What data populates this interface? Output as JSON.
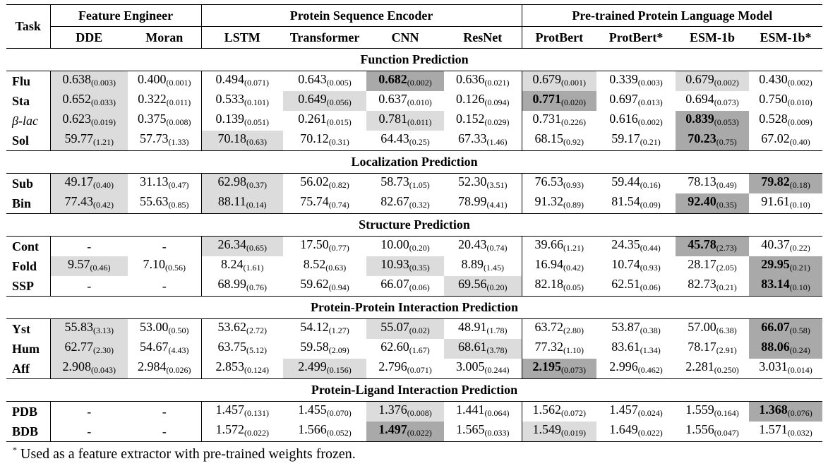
{
  "headers": {
    "task": "Task",
    "groups": [
      {
        "label": "Feature Engineer",
        "span": 2
      },
      {
        "label": "Protein Sequence Encoder",
        "span": 4
      },
      {
        "label": "Pre-trained Protein Language Model",
        "span": 4
      }
    ],
    "methods": [
      "DDE",
      "Moran",
      "LSTM",
      "Transformer",
      "CNN",
      "ResNet",
      "ProtBert",
      "ProtBert*",
      "ESM-1b",
      "ESM-1b*"
    ]
  },
  "sections": [
    {
      "title": "Function Prediction",
      "rows": [
        {
          "task": "Flu",
          "cells": [
            {
              "v": "0.638",
              "s": "(0.003)",
              "h": "light"
            },
            {
              "v": "0.400",
              "s": "(0.001)"
            },
            {
              "v": "0.494",
              "s": "(0.071)"
            },
            {
              "v": "0.643",
              "s": "(0.005)"
            },
            {
              "v": "0.682",
              "s": "(0.002)",
              "h": "dark",
              "b": true
            },
            {
              "v": "0.636",
              "s": "(0.021)"
            },
            {
              "v": "0.679",
              "s": "(0.001)",
              "h": "light"
            },
            {
              "v": "0.339",
              "s": "(0.003)"
            },
            {
              "v": "0.679",
              "s": "(0.002)",
              "h": "light"
            },
            {
              "v": "0.430",
              "s": "(0.002)"
            }
          ]
        },
        {
          "task": "Sta",
          "cells": [
            {
              "v": "0.652",
              "s": "(0.033)",
              "h": "light"
            },
            {
              "v": "0.322",
              "s": "(0.011)"
            },
            {
              "v": "0.533",
              "s": "(0.101)"
            },
            {
              "v": "0.649",
              "s": "(0.056)",
              "h": "light"
            },
            {
              "v": "0.637",
              "s": "(0.010)"
            },
            {
              "v": "0.126",
              "s": "(0.094)"
            },
            {
              "v": "0.771",
              "s": "(0.020)",
              "h": "dark",
              "b": true
            },
            {
              "v": "0.697",
              "s": "(0.013)"
            },
            {
              "v": "0.694",
              "s": "(0.073)"
            },
            {
              "v": "0.750",
              "s": "(0.010)"
            }
          ]
        },
        {
          "task": "β-lac",
          "greek": true,
          "cells": [
            {
              "v": "0.623",
              "s": "(0.019)",
              "h": "light"
            },
            {
              "v": "0.375",
              "s": "(0.008)"
            },
            {
              "v": "0.139",
              "s": "(0.051)"
            },
            {
              "v": "0.261",
              "s": "(0.015)"
            },
            {
              "v": "0.781",
              "s": "(0.011)",
              "h": "light"
            },
            {
              "v": "0.152",
              "s": "(0.029)"
            },
            {
              "v": "0.731",
              "s": "(0.226)"
            },
            {
              "v": "0.616",
              "s": "(0.002)"
            },
            {
              "v": "0.839",
              "s": "(0.053)",
              "h": "dark",
              "b": true
            },
            {
              "v": "0.528",
              "s": "(0.009)"
            }
          ]
        },
        {
          "task": "Sol",
          "cells": [
            {
              "v": "59.77",
              "s": "(1.21)",
              "h": "light"
            },
            {
              "v": "57.73",
              "s": "(1.33)"
            },
            {
              "v": "70.18",
              "s": "(0.63)",
              "h": "light"
            },
            {
              "v": "70.12",
              "s": "(0.31)"
            },
            {
              "v": "64.43",
              "s": "(0.25)"
            },
            {
              "v": "67.33",
              "s": "(1.46)"
            },
            {
              "v": "68.15",
              "s": "(0.92)"
            },
            {
              "v": "59.17",
              "s": "(0.21)"
            },
            {
              "v": "70.23",
              "s": "(0.75)",
              "h": "dark",
              "b": true
            },
            {
              "v": "67.02",
              "s": "(0.40)"
            }
          ]
        }
      ]
    },
    {
      "title": "Localization Prediction",
      "rows": [
        {
          "task": "Sub",
          "cells": [
            {
              "v": "49.17",
              "s": "(0.40)",
              "h": "light"
            },
            {
              "v": "31.13",
              "s": "(0.47)"
            },
            {
              "v": "62.98",
              "s": "(0.37)",
              "h": "light"
            },
            {
              "v": "56.02",
              "s": "(0.82)"
            },
            {
              "v": "58.73",
              "s": "(1.05)"
            },
            {
              "v": "52.30",
              "s": "(3.51)"
            },
            {
              "v": "76.53",
              "s": "(0.93)"
            },
            {
              "v": "59.44",
              "s": "(0.16)"
            },
            {
              "v": "78.13",
              "s": "(0.49)"
            },
            {
              "v": "79.82",
              "s": "(0.18)",
              "h": "dark",
              "b": true
            }
          ]
        },
        {
          "task": "Bin",
          "cells": [
            {
              "v": "77.43",
              "s": "(0.42)",
              "h": "light"
            },
            {
              "v": "55.63",
              "s": "(0.85)"
            },
            {
              "v": "88.11",
              "s": "(0.14)",
              "h": "light"
            },
            {
              "v": "75.74",
              "s": "(0.74)"
            },
            {
              "v": "82.67",
              "s": "(0.32)"
            },
            {
              "v": "78.99",
              "s": "(4.41)"
            },
            {
              "v": "91.32",
              "s": "(0.89)"
            },
            {
              "v": "81.54",
              "s": "(0.09)"
            },
            {
              "v": "92.40",
              "s": "(0.35)",
              "h": "dark",
              "b": true
            },
            {
              "v": "91.61",
              "s": "(0.10)"
            }
          ]
        }
      ]
    },
    {
      "title": "Structure Prediction",
      "rows": [
        {
          "task": "Cont",
          "cells": [
            {
              "v": "-"
            },
            {
              "v": "-"
            },
            {
              "v": "26.34",
              "s": "(0.65)",
              "h": "light"
            },
            {
              "v": "17.50",
              "s": "(0.77)"
            },
            {
              "v": "10.00",
              "s": "(0.20)"
            },
            {
              "v": "20.43",
              "s": "(0.74)"
            },
            {
              "v": "39.66",
              "s": "(1.21)"
            },
            {
              "v": "24.35",
              "s": "(0.44)"
            },
            {
              "v": "45.78",
              "s": "(2.73)",
              "h": "dark",
              "b": true
            },
            {
              "v": "40.37",
              "s": "(0.22)"
            }
          ]
        },
        {
          "task": "Fold",
          "cells": [
            {
              "v": "9.57",
              "s": "(0.46)",
              "h": "light"
            },
            {
              "v": "7.10",
              "s": "(0.56)"
            },
            {
              "v": "8.24",
              "s": "(1.61)"
            },
            {
              "v": "8.52",
              "s": "(0.63)"
            },
            {
              "v": "10.93",
              "s": "(0.35)",
              "h": "light"
            },
            {
              "v": "8.89",
              "s": "(1.45)"
            },
            {
              "v": "16.94",
              "s": "(0.42)"
            },
            {
              "v": "10.74",
              "s": "(0.93)"
            },
            {
              "v": "28.17",
              "s": "(2.05)"
            },
            {
              "v": "29.95",
              "s": "(0.21)",
              "h": "dark",
              "b": true
            }
          ]
        },
        {
          "task": "SSP",
          "cells": [
            {
              "v": "-"
            },
            {
              "v": "-"
            },
            {
              "v": "68.99",
              "s": "(0.76)"
            },
            {
              "v": "59.62",
              "s": "(0.94)"
            },
            {
              "v": "66.07",
              "s": "(0.06)"
            },
            {
              "v": "69.56",
              "s": "(0.20)",
              "h": "light"
            },
            {
              "v": "82.18",
              "s": "(0.05)"
            },
            {
              "v": "62.51",
              "s": "(0.06)"
            },
            {
              "v": "82.73",
              "s": "(0.21)"
            },
            {
              "v": "83.14",
              "s": "(0.10)",
              "h": "dark",
              "b": true
            }
          ]
        }
      ]
    },
    {
      "title": "Protein-Protein Interaction Prediction",
      "rows": [
        {
          "task": "Yst",
          "cells": [
            {
              "v": "55.83",
              "s": "(3.13)",
              "h": "light"
            },
            {
              "v": "53.00",
              "s": "(0.50)"
            },
            {
              "v": "53.62",
              "s": "(2.72)"
            },
            {
              "v": "54.12",
              "s": "(1.27)"
            },
            {
              "v": "55.07",
              "s": "(0.02)",
              "h": "light"
            },
            {
              "v": "48.91",
              "s": "(1.78)"
            },
            {
              "v": "63.72",
              "s": "(2.80)"
            },
            {
              "v": "53.87",
              "s": "(0.38)"
            },
            {
              "v": "57.00",
              "s": "(6.38)"
            },
            {
              "v": "66.07",
              "s": "(0.58)",
              "h": "dark",
              "b": true
            }
          ]
        },
        {
          "task": "Hum",
          "cells": [
            {
              "v": "62.77",
              "s": "(2.30)",
              "h": "light"
            },
            {
              "v": "54.67",
              "s": "(4.43)"
            },
            {
              "v": "63.75",
              "s": "(5.12)"
            },
            {
              "v": "59.58",
              "s": "(2.09)"
            },
            {
              "v": "62.60",
              "s": "(1.67)"
            },
            {
              "v": "68.61",
              "s": "(3.78)",
              "h": "light"
            },
            {
              "v": "77.32",
              "s": "(1.10)"
            },
            {
              "v": "83.61",
              "s": "(1.34)"
            },
            {
              "v": "78.17",
              "s": "(2.91)"
            },
            {
              "v": "88.06",
              "s": "(0.24)",
              "h": "dark",
              "b": true
            }
          ]
        },
        {
          "task": "Aff",
          "cells": [
            {
              "v": "2.908",
              "s": "(0.043)",
              "h": "light"
            },
            {
              "v": "2.984",
              "s": "(0.026)"
            },
            {
              "v": "2.853",
              "s": "(0.124)"
            },
            {
              "v": "2.499",
              "s": "(0.156)",
              "h": "light"
            },
            {
              "v": "2.796",
              "s": "(0.071)"
            },
            {
              "v": "3.005",
              "s": "(0.244)"
            },
            {
              "v": "2.195",
              "s": "(0.073)",
              "h": "dark",
              "b": true
            },
            {
              "v": "2.996",
              "s": "(0.462)"
            },
            {
              "v": "2.281",
              "s": "(0.250)"
            },
            {
              "v": "3.031",
              "s": "(0.014)"
            }
          ]
        }
      ]
    },
    {
      "title": "Protein-Ligand Interaction Prediction",
      "rows": [
        {
          "task": "PDB",
          "cells": [
            {
              "v": "-"
            },
            {
              "v": "-"
            },
            {
              "v": "1.457",
              "s": "(0.131)"
            },
            {
              "v": "1.455",
              "s": "(0.070)"
            },
            {
              "v": "1.376",
              "s": "(0.008)",
              "h": "light"
            },
            {
              "v": "1.441",
              "s": "(0.064)"
            },
            {
              "v": "1.562",
              "s": "(0.072)"
            },
            {
              "v": "1.457",
              "s": "(0.024)"
            },
            {
              "v": "1.559",
              "s": "(0.164)"
            },
            {
              "v": "1.368",
              "s": "(0.076)",
              "h": "dark",
              "b": true
            }
          ]
        },
        {
          "task": "BDB",
          "cells": [
            {
              "v": "-"
            },
            {
              "v": "-"
            },
            {
              "v": "1.572",
              "s": "(0.022)"
            },
            {
              "v": "1.566",
              "s": "(0.052)"
            },
            {
              "v": "1.497",
              "s": "(0.022)",
              "h": "dark",
              "b": true
            },
            {
              "v": "1.565",
              "s": "(0.033)"
            },
            {
              "v": "1.549",
              "s": "(0.019)",
              "h": "light"
            },
            {
              "v": "1.649",
              "s": "(0.022)"
            },
            {
              "v": "1.556",
              "s": "(0.047)"
            },
            {
              "v": "1.571",
              "s": "(0.032)"
            }
          ]
        }
      ]
    }
  ],
  "footnote": {
    "marker": "*",
    "text": "Used as a feature extractor with pre-trained weights frozen."
  },
  "colors": {
    "highlight_light": "#dcdcdc",
    "highlight_dark": "#a9a9a9"
  }
}
